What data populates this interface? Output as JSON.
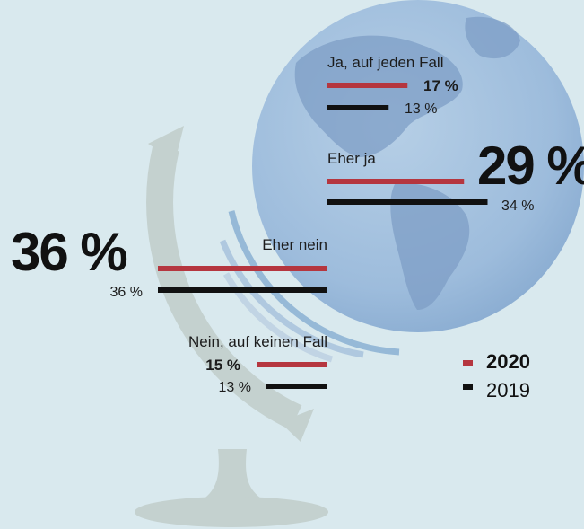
{
  "chart_data": {
    "type": "bar",
    "orientation": "horizontal",
    "categories": [
      "Ja, auf jeden Fall",
      "Eher ja",
      "Eher nein",
      "Nein, auf keinen Fall"
    ],
    "series": [
      {
        "name": "2020",
        "values": [
          17,
          29,
          36,
          15
        ],
        "labels": [
          "17 %",
          "29 %",
          "36 %",
          "15 %"
        ],
        "color": "#b5363f"
      },
      {
        "name": "2019",
        "values": [
          13,
          34,
          36,
          13
        ],
        "labels": [
          "13 %",
          "34 %",
          "36 %",
          "13 %"
        ],
        "color": "#111111"
      }
    ],
    "unit": "%",
    "legend_position": "bottom-right"
  },
  "legend": {
    "bold_label": "2020",
    "normal_label": "2019"
  }
}
